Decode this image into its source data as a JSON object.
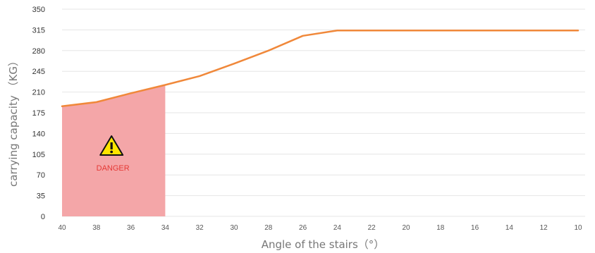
{
  "chart_data": {
    "type": "line",
    "xlabel": "Angle of the stairs（°）",
    "ylabel": "carrying capacity （KG）",
    "x": [
      40,
      38,
      36,
      34,
      32,
      30,
      28,
      26,
      24,
      22,
      20,
      18,
      16,
      14,
      12,
      10
    ],
    "x_tick_labels": [
      "40",
      "38",
      "36",
      "34",
      "32",
      "30",
      "28",
      "26",
      "24",
      "22",
      "20",
      "18",
      "16",
      "14",
      "12",
      "10"
    ],
    "y_ticks": [
      0,
      35,
      70,
      105,
      140,
      175,
      210,
      245,
      280,
      315,
      350
    ],
    "y_tick_labels": [
      "0",
      "35",
      "70",
      "105",
      "140",
      "175",
      "210",
      "245",
      "280",
      "315",
      "350"
    ],
    "ylim": [
      0,
      350
    ],
    "x_reversed": true,
    "grid": "horizontal",
    "series": [
      {
        "values": [
          186,
          193,
          208,
          222,
          237,
          258,
          280,
          305,
          314,
          314,
          314,
          314,
          314,
          314,
          314,
          314
        ],
        "color": "#f0883a"
      }
    ],
    "danger_zone": {
      "x_range": [
        40,
        34
      ],
      "label": "DANGER",
      "fill_color": "#f4a6a8",
      "icon": "warning-triangle-icon"
    }
  }
}
